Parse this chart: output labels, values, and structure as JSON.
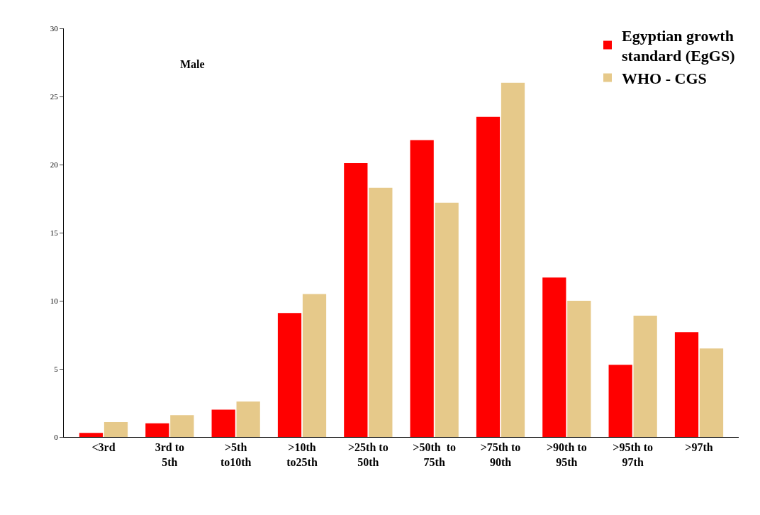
{
  "chart_data": {
    "type": "bar",
    "categories": [
      "<3rd",
      "3rd to\n5th",
      ">5th\nto10th",
      ">10th\nto25th",
      ">25th to\n50th",
      ">50th  to\n75th",
      ">75th to\n90th",
      ">90th to\n95th",
      ">95th to\n97th",
      ">97th"
    ],
    "series": [
      {
        "name": "Egyptian growth\nstandard (EgGS)",
        "color": "#ff0000",
        "values": [
          0.3,
          1.0,
          2.0,
          9.1,
          20.1,
          21.8,
          23.5,
          11.7,
          5.3,
          7.7
        ]
      },
      {
        "name": "WHO - CGS",
        "color": "#e6c98a",
        "values": [
          1.1,
          1.6,
          2.6,
          10.5,
          18.3,
          17.2,
          26.0,
          10.0,
          8.9,
          6.5
        ]
      }
    ],
    "ylim": [
      0,
      30
    ],
    "yticks": [
      0,
      5,
      10,
      15,
      20,
      25,
      30
    ],
    "annotations": [
      "Male"
    ],
    "legend": "top right"
  }
}
